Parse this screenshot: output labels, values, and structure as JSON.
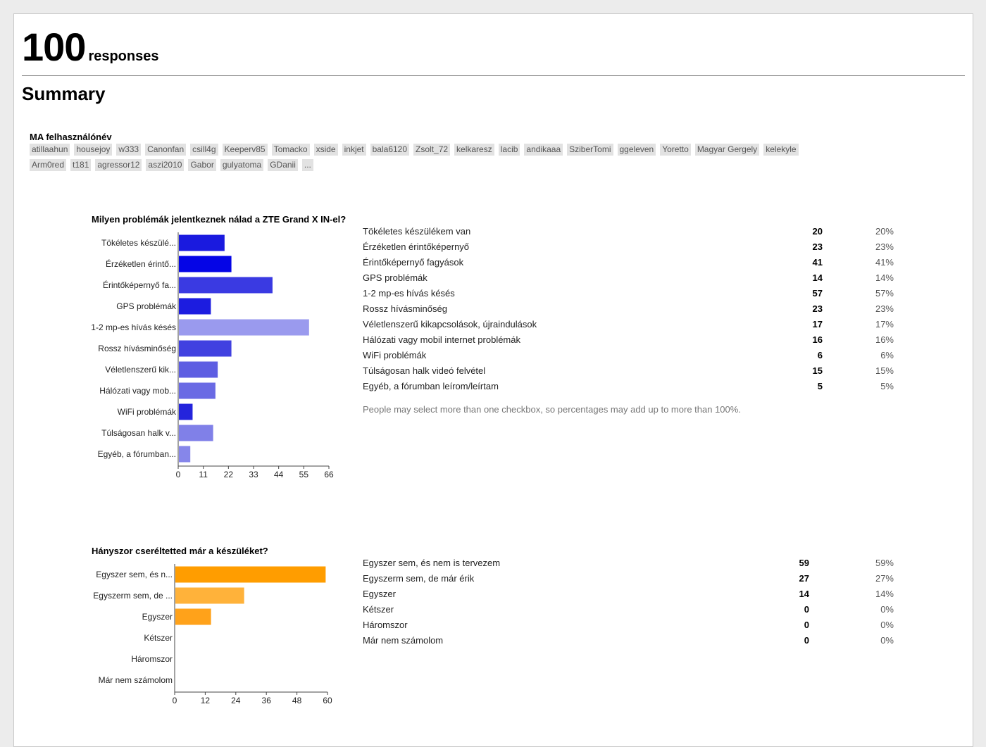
{
  "header": {
    "count": "100",
    "count_label": "responses",
    "summary_title": "Summary"
  },
  "users": {
    "question": "MA felhasználónév",
    "names": [
      "atillaahun",
      "housejoy",
      "w333",
      "Canonfan",
      "csill4g",
      "Keeperv85",
      "Tomacko",
      "xside",
      "inkjet",
      "bala6120",
      "Zsolt_72",
      "kelkaresz",
      "lacib",
      "andikaaa",
      "SziberTomi",
      "ggeleven",
      "Yoretto",
      "Magyar Gergely",
      "kelekyle",
      "Arm0red",
      "t181",
      "agressor12",
      "aszi2010",
      "Gabor",
      "gulyatoma",
      "GDanii",
      "..."
    ]
  },
  "q1": {
    "title": "Milyen problémák jelentkeznek nálad a ZTE Grand X IN-el?",
    "rows": [
      {
        "label": "Tökéletes készülékem van",
        "count": "20",
        "pct": "20%"
      },
      {
        "label": "Érzéketlen érintőképernyő",
        "count": "23",
        "pct": "23%"
      },
      {
        "label": "Érintőképernyő fagyások",
        "count": "41",
        "pct": "41%"
      },
      {
        "label": "GPS problémák",
        "count": "14",
        "pct": "14%"
      },
      {
        "label": "1-2 mp-es hívás késés",
        "count": "57",
        "pct": "57%"
      },
      {
        "label": "Rossz hívásminőség",
        "count": "23",
        "pct": "23%"
      },
      {
        "label": "Véletlenszerű kikapcsolások, újraindulások",
        "count": "17",
        "pct": "17%"
      },
      {
        "label": "Hálózati vagy mobil internet problémák",
        "count": "16",
        "pct": "16%"
      },
      {
        "label": "WiFi problémák",
        "count": "6",
        "pct": "6%"
      },
      {
        "label": "Túlságosan halk videó felvétel",
        "count": "15",
        "pct": "15%"
      },
      {
        "label": "Egyéb, a fórumban leírom/leírtam",
        "count": "5",
        "pct": "5%"
      }
    ],
    "note": "People may select more than one checkbox, so percentages may add up to more than 100%."
  },
  "q2": {
    "title": "Hányszor cseréltetted már a készüléket?",
    "rows": [
      {
        "label": "Egyszer sem, és nem is tervezem",
        "count": "59",
        "pct": "59%"
      },
      {
        "label": "Egyszerm sem, de már érik",
        "count": "27",
        "pct": "27%"
      },
      {
        "label": "Egyszer",
        "count": "14",
        "pct": "14%"
      },
      {
        "label": "Kétszer",
        "count": "0",
        "pct": "0%"
      },
      {
        "label": "Háromszor",
        "count": "0",
        "pct": "0%"
      },
      {
        "label": "Már nem számolom",
        "count": "0",
        "pct": "0%"
      }
    ]
  },
  "chart_data": [
    {
      "type": "bar",
      "orientation": "horizontal",
      "title": "Milyen problémák jelentkeznek nálad a ZTE Grand X IN-el?",
      "categories": [
        "Tökéletes készülé...",
        "Érzéketlen érintő...",
        "Érintőképernyő fa...",
        "GPS problémák",
        "1-2 mp-es hívás késés",
        "Rossz hívásminőség",
        "Véletlenszerű kik...",
        "Hálózati vagy mob...",
        "WiFi problémák",
        "Túlságosan halk v...",
        "Egyéb, a fórumban..."
      ],
      "values": [
        20,
        23,
        41,
        14,
        57,
        23,
        17,
        16,
        6,
        15,
        5
      ],
      "colors": [
        "#1a1adf",
        "#0505e6",
        "#3a3ae2",
        "#1c1ce0",
        "#9a9aee",
        "#4141e0",
        "#5e5ee2",
        "#6a6ae4",
        "#2424dc",
        "#8080e8",
        "#8686ea"
      ],
      "ticks": [
        0,
        11,
        22,
        33,
        44,
        55,
        66
      ],
      "xlim": [
        0,
        66
      ],
      "grid": false
    },
    {
      "type": "bar",
      "orientation": "horizontal",
      "title": "Hányszor cseréltetted már a készüléket?",
      "categories": [
        "Egyszer sem, és n...",
        "Egyszerm sem, de ...",
        "Egyszer",
        "Kétszer",
        "Háromszor",
        "Már nem számolom"
      ],
      "values": [
        59,
        27,
        14,
        0,
        0,
        0
      ],
      "colors": [
        "#ff9d00",
        "#ffb23a",
        "#ffa21a",
        "#ffa21a",
        "#ffa21a",
        "#ffa21a"
      ],
      "ticks": [
        0,
        12,
        24,
        36,
        48,
        60
      ],
      "xlim": [
        0,
        60
      ],
      "grid": false
    }
  ]
}
